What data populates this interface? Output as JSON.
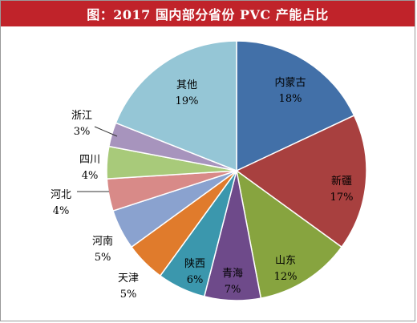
{
  "title": "图：2017 国内部分省份 PVC 产能占比",
  "chart_data": {
    "type": "pie",
    "categories": [
      "内蒙古",
      "新疆",
      "山东",
      "青海",
      "陕西",
      "天津",
      "河南",
      "河北",
      "四川",
      "浙江",
      "其他"
    ],
    "values": [
      18,
      17,
      12,
      7,
      6,
      5,
      5,
      4,
      4,
      3,
      19
    ],
    "value_labels": [
      "18%",
      "17%",
      "12%",
      "7%",
      "6%",
      "5%",
      "5%",
      "4%",
      "4%",
      "3%",
      "19%"
    ],
    "colors": [
      "#4270a8",
      "#a8403f",
      "#87a43f",
      "#6e4a8a",
      "#3b97ad",
      "#e07b2c",
      "#8aa2cf",
      "#d88a88",
      "#a8ca7a",
      "#a794bd",
      "#95c6d6"
    ],
    "start_angle_deg": 0,
    "direction": "clockwise"
  }
}
